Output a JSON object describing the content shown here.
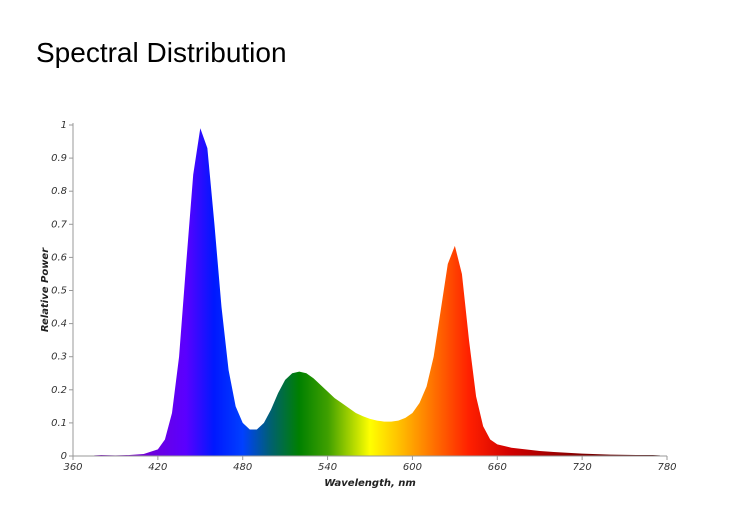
{
  "chart_data": {
    "type": "area",
    "title": "Spectral Distribution",
    "x_label": "Wavelength, nm",
    "y_label": "Relative Power",
    "x": [
      375,
      380,
      390,
      400,
      410,
      420,
      425,
      430,
      435,
      440,
      445,
      450,
      455,
      460,
      465,
      470,
      475,
      480,
      485,
      490,
      495,
      500,
      505,
      510,
      515,
      520,
      525,
      530,
      535,
      540,
      545,
      550,
      555,
      560,
      565,
      570,
      575,
      580,
      585,
      590,
      595,
      600,
      605,
      610,
      615,
      620,
      625,
      630,
      635,
      640,
      645,
      650,
      655,
      660,
      670,
      680,
      690,
      700,
      720,
      740,
      760,
      770,
      775
    ],
    "values": [
      0.002,
      0.003,
      0.002,
      0.003,
      0.006,
      0.02,
      0.05,
      0.13,
      0.3,
      0.58,
      0.85,
      0.99,
      0.93,
      0.7,
      0.45,
      0.26,
      0.15,
      0.1,
      0.08,
      0.08,
      0.1,
      0.14,
      0.19,
      0.23,
      0.25,
      0.255,
      0.25,
      0.235,
      0.215,
      0.195,
      0.175,
      0.16,
      0.145,
      0.13,
      0.12,
      0.112,
      0.107,
      0.104,
      0.104,
      0.107,
      0.115,
      0.13,
      0.16,
      0.21,
      0.3,
      0.44,
      0.58,
      0.635,
      0.55,
      0.35,
      0.18,
      0.09,
      0.05,
      0.035,
      0.025,
      0.02,
      0.015,
      0.012,
      0.007,
      0.004,
      0.003,
      0.003,
      0.002
    ],
    "xlim": [
      360,
      780
    ],
    "xticks": [
      360,
      420,
      480,
      540,
      600,
      660,
      720,
      780
    ],
    "ylim": [
      0,
      1
    ],
    "yticks": [
      0,
      0.1,
      0.2,
      0.3,
      0.4,
      0.5,
      0.6,
      0.7,
      0.8,
      0.9,
      1
    ]
  }
}
